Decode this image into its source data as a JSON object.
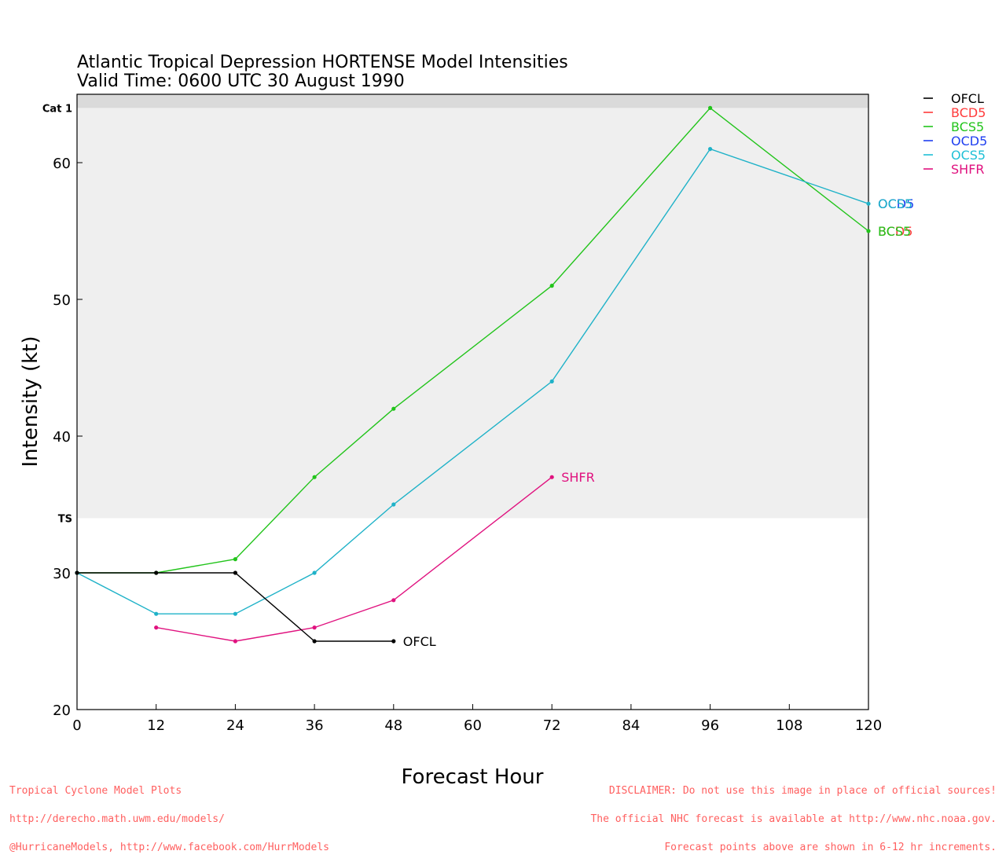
{
  "chart_data": {
    "type": "line",
    "title": "Atlantic Tropical Depression HORTENSE Model Intensities",
    "subtitle": "Valid Time: 0600 UTC 30 August 1990",
    "xlabel": "Forecast Hour",
    "ylabel": "Intensity (kt)",
    "xlim": [
      0,
      120
    ],
    "ylim": [
      20,
      65
    ],
    "x_ticks": [
      "0",
      "12",
      "24",
      "36",
      "48",
      "60",
      "72",
      "84",
      "96",
      "108",
      "120"
    ],
    "y_ticks": [
      "20",
      "30",
      "40",
      "50",
      "60"
    ],
    "bands": [
      {
        "label": "TS",
        "from": 34,
        "to": 64,
        "color": "#efefef"
      },
      {
        "label": "Cat 1",
        "from": 64,
        "to": 65,
        "color": "#dadada"
      }
    ],
    "legend_position": "top-right",
    "legend": [
      {
        "name": "OFCL",
        "color": "#000000"
      },
      {
        "name": "BCD5",
        "color": "#ff3b3b"
      },
      {
        "name": "BCS5",
        "color": "#22c41b"
      },
      {
        "name": "OCD5",
        "color": "#1f3ff0"
      },
      {
        "name": "OCS5",
        "color": "#1fc0d6"
      },
      {
        "name": "SHFR",
        "color": "#e0127f"
      }
    ],
    "series": [
      {
        "name": "BCS5",
        "color": "#22c41b",
        "x": [
          0,
          12,
          24,
          36,
          48,
          72,
          96,
          120
        ],
        "values": [
          30,
          30,
          31,
          37,
          42,
          51,
          64,
          55
        ]
      },
      {
        "name": "OCS5",
        "color": "#1fb2c8",
        "x": [
          0,
          12,
          24,
          36,
          48,
          72,
          96,
          120
        ],
        "values": [
          30,
          27,
          27,
          30,
          35,
          44,
          61,
          57
        ]
      },
      {
        "name": "SHFR",
        "color": "#e0127f",
        "x": [
          12,
          24,
          36,
          48,
          72
        ],
        "values": [
          26,
          25,
          26,
          28,
          37
        ]
      },
      {
        "name": "OFCL",
        "color": "#000000",
        "x": [
          0,
          12,
          24,
          36,
          48
        ],
        "values": [
          30,
          30,
          30,
          25,
          25
        ]
      }
    ],
    "end_labels": [
      {
        "text": "OCD5",
        "color": "#1f3ff0",
        "x": 120,
        "y": 57
      },
      {
        "text": "OCS5",
        "color": "#1fb2c8",
        "x": 120,
        "y": 57
      },
      {
        "text": "BCD5",
        "color": "#ff3b3b",
        "x": 120,
        "y": 55
      },
      {
        "text": "BCS5",
        "color": "#22c41b",
        "x": 120,
        "y": 55
      },
      {
        "text": "SHFR",
        "color": "#e0127f",
        "x": 72,
        "y": 37
      },
      {
        "text": "OFCL",
        "color": "#000000",
        "x": 48,
        "y": 25
      }
    ]
  },
  "footer_left": [
    "Tropical Cyclone Model Plots",
    "http://derecho.math.uwm.edu/models/",
    "@HurricaneModels, http://www.facebook.com/HurrModels"
  ],
  "footer_right": [
    "DISCLAIMER: Do not use this image in place of official sources!",
    "The official NHC forecast is available at http://www.nhc.noaa.gov.",
    "Forecast points above are shown in 6-12 hr increments."
  ],
  "footer_color": "#ff5f5f"
}
